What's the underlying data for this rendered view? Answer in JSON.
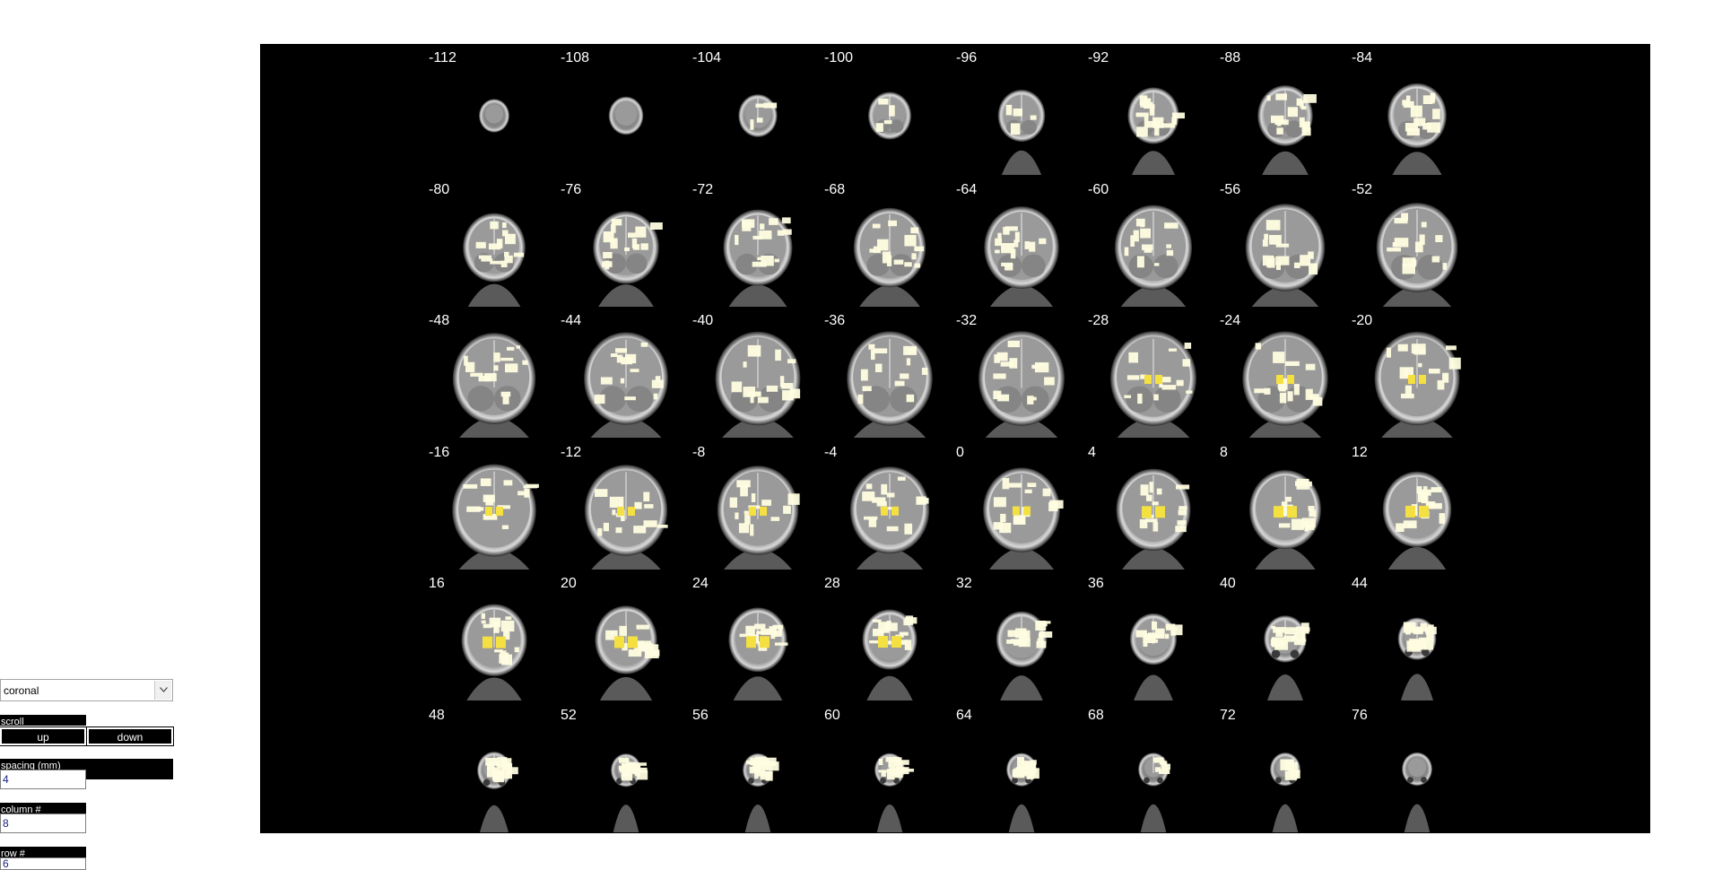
{
  "controls": {
    "view_select": {
      "value": "coronal"
    },
    "scroll": {
      "label": "scroll",
      "up_label": "up",
      "down_label": "down"
    },
    "spacing": {
      "label": "spacing (mm)",
      "value": "4"
    },
    "columns": {
      "label": "column #",
      "value": "8"
    },
    "rows": {
      "label": "row #",
      "value": "6"
    }
  },
  "viewer": {
    "background": "#000000",
    "overlay_colors": {
      "pale": "#fffde0",
      "yellow": "#f5e042"
    },
    "slices": [
      {
        "label": "-112",
        "pos": -112
      },
      {
        "label": "-108",
        "pos": -108
      },
      {
        "label": "-104",
        "pos": -104
      },
      {
        "label": "-100",
        "pos": -100
      },
      {
        "label": "-96",
        "pos": -96
      },
      {
        "label": "-92",
        "pos": -92
      },
      {
        "label": "-88",
        "pos": -88
      },
      {
        "label": "-84",
        "pos": -84
      },
      {
        "label": "-80",
        "pos": -80
      },
      {
        "label": "-76",
        "pos": -76
      },
      {
        "label": "-72",
        "pos": -72
      },
      {
        "label": "-68",
        "pos": -68
      },
      {
        "label": "-64",
        "pos": -64
      },
      {
        "label": "-60",
        "pos": -60
      },
      {
        "label": "-56",
        "pos": -56
      },
      {
        "label": "-52",
        "pos": -52
      },
      {
        "label": "-48",
        "pos": -48
      },
      {
        "label": "-44",
        "pos": -44
      },
      {
        "label": "-40",
        "pos": -40
      },
      {
        "label": "-36",
        "pos": -36
      },
      {
        "label": "-32",
        "pos": -32
      },
      {
        "label": "-28",
        "pos": -28
      },
      {
        "label": "-24",
        "pos": -24
      },
      {
        "label": "-20",
        "pos": -20
      },
      {
        "label": "-16",
        "pos": -16
      },
      {
        "label": "-12",
        "pos": -12
      },
      {
        "label": "-8",
        "pos": -8
      },
      {
        "label": "-4",
        "pos": -4
      },
      {
        "label": "0",
        "pos": 0
      },
      {
        "label": "4",
        "pos": 4
      },
      {
        "label": "8",
        "pos": 8
      },
      {
        "label": "12",
        "pos": 12
      },
      {
        "label": "16",
        "pos": 16
      },
      {
        "label": "20",
        "pos": 20
      },
      {
        "label": "24",
        "pos": 24
      },
      {
        "label": "28",
        "pos": 28
      },
      {
        "label": "32",
        "pos": 32
      },
      {
        "label": "36",
        "pos": 36
      },
      {
        "label": "40",
        "pos": 40
      },
      {
        "label": "44",
        "pos": 44
      },
      {
        "label": "48",
        "pos": 48
      },
      {
        "label": "52",
        "pos": 52
      },
      {
        "label": "56",
        "pos": 56
      },
      {
        "label": "60",
        "pos": 60
      },
      {
        "label": "64",
        "pos": 64
      },
      {
        "label": "68",
        "pos": 68
      },
      {
        "label": "72",
        "pos": 72
      },
      {
        "label": "76",
        "pos": 76
      }
    ]
  }
}
